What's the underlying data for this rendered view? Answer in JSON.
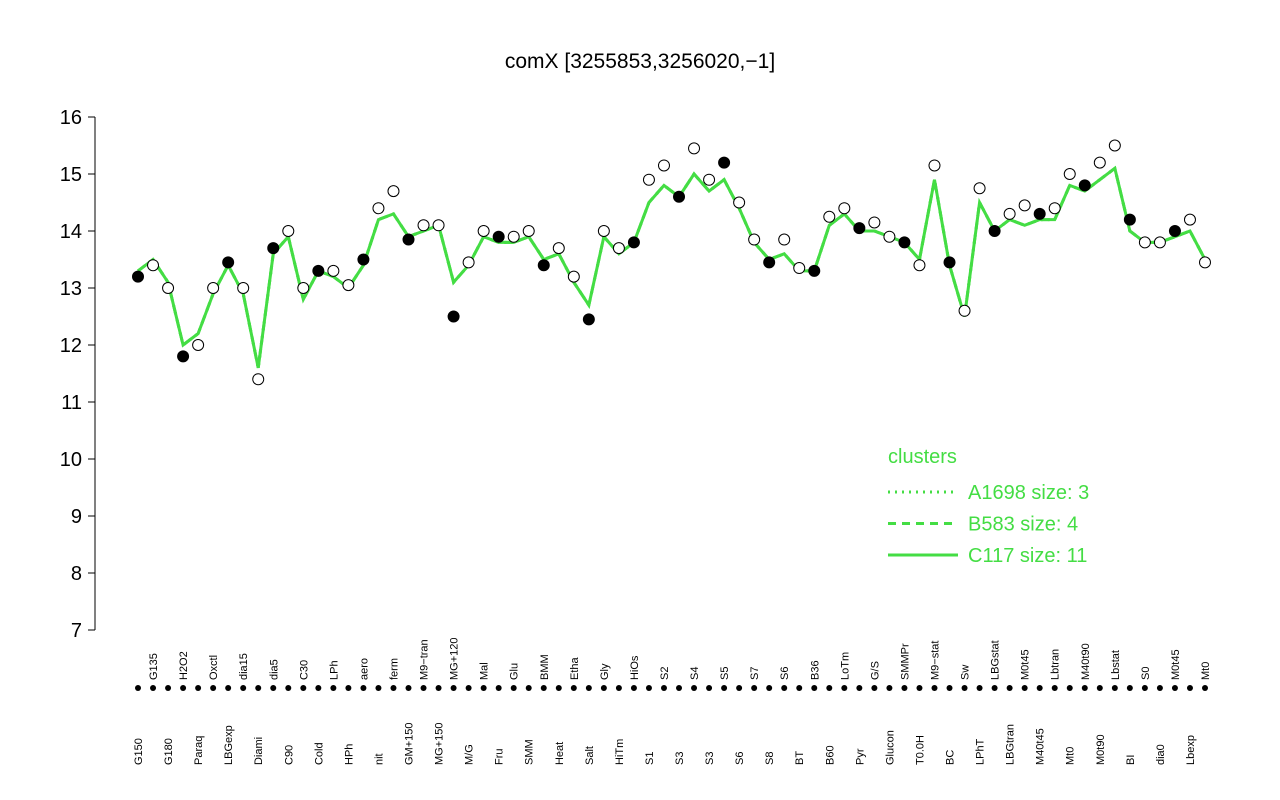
{
  "chart_data": {
    "type": "line",
    "title": "comX [3255853,3256020,−1]",
    "categories": [
      "G150",
      "G135",
      "G180",
      "H2O2",
      "Paraq",
      "Oxctl",
      "LBGexp",
      "dia15",
      "Diami",
      "dia5",
      "C90",
      "C30",
      "Cold",
      "LPh",
      "HPh",
      "aero",
      "nit",
      "ferm",
      "GM+150",
      "M9−tran",
      "MG+150",
      "MG+120",
      "M/G",
      "Mal",
      "Fru",
      "Glu",
      "SMM",
      "BMM",
      "Heat",
      "Etha",
      "Salt",
      "Gly",
      "HiTm",
      "HiOs",
      "S1",
      "S2",
      "S3",
      "S4",
      "S3",
      "S5",
      "S6",
      "S7",
      "S8",
      "S6",
      "BT",
      "B36",
      "B60",
      "LoTm",
      "Pyr",
      "G/S",
      "Glucon",
      "SMMPr",
      "T0.0H",
      "M9−stat",
      "BC",
      "Sw",
      "LPhT",
      "LBGstat",
      "LBGtran",
      "M0t45",
      "M40t45",
      "Lbtran",
      "Mt0",
      "M40t90",
      "M0t90",
      "Lbstat",
      "BI",
      "S0",
      "dia0",
      "M0t45",
      "Lbexp",
      "Mt0"
    ],
    "values": [
      13.2,
      13.4,
      13.0,
      11.8,
      12.0,
      13.0,
      13.45,
      13.0,
      11.4,
      13.7,
      14.0,
      13.0,
      13.3,
      13.3,
      13.05,
      13.5,
      14.4,
      14.7,
      13.85,
      14.1,
      14.1,
      12.5,
      13.45,
      14.0,
      13.9,
      13.9,
      14.0,
      13.4,
      13.7,
      13.2,
      12.45,
      14.0,
      13.7,
      13.8,
      14.9,
      15.15,
      14.6,
      15.45,
      14.9,
      15.2,
      14.5,
      13.85,
      13.45,
      13.85,
      13.35,
      13.3,
      14.25,
      14.4,
      14.05,
      14.15,
      13.9,
      13.8,
      13.4,
      15.15,
      13.45,
      12.6,
      14.75,
      14.0,
      14.3,
      14.45,
      14.3,
      14.4,
      15.0,
      14.8,
      15.2,
      15.5,
      14.2,
      13.8,
      13.8,
      14.0,
      14.2,
      13.45
    ],
    "point_color": "#000000",
    "legend_title": "clusters",
    "series": [
      {
        "name": "A1698 size: 3",
        "color": "#44dd44",
        "style": "dotted",
        "values": [
          13.3,
          13.5,
          13.1,
          12.0,
          12.2,
          12.9,
          13.4,
          12.9,
          11.6,
          13.6,
          13.9,
          12.8,
          13.3,
          13.2,
          13.0,
          13.4,
          14.2,
          14.3,
          13.9,
          14.0,
          14.1,
          13.1,
          13.4,
          13.9,
          13.8,
          13.8,
          13.9,
          13.5,
          13.6,
          13.1,
          12.7,
          13.9,
          13.6,
          13.8,
          14.5,
          14.8,
          14.6,
          15.0,
          14.7,
          14.9,
          14.4,
          13.8,
          13.5,
          13.6,
          13.3,
          13.3,
          14.1,
          14.3,
          14.0,
          14.0,
          13.9,
          13.8,
          13.5,
          14.9,
          13.4,
          12.5,
          14.5,
          14.0,
          14.2,
          14.1,
          14.2,
          14.2,
          14.8,
          14.7,
          14.9,
          15.1,
          14.0,
          13.8,
          13.8,
          13.9,
          14.0,
          13.5
        ]
      },
      {
        "name": "B583 size: 4",
        "color": "#44dd44",
        "style": "dashed",
        "values": [
          13.3,
          13.5,
          13.1,
          12.0,
          12.2,
          12.9,
          13.4,
          12.9,
          11.6,
          13.6,
          13.9,
          12.8,
          13.3,
          13.2,
          13.0,
          13.4,
          14.2,
          14.3,
          13.9,
          14.0,
          14.1,
          13.1,
          13.4,
          13.9,
          13.8,
          13.8,
          13.9,
          13.5,
          13.6,
          13.1,
          12.7,
          13.9,
          13.6,
          13.8,
          14.5,
          14.8,
          14.6,
          15.0,
          14.7,
          14.9,
          14.4,
          13.8,
          13.5,
          13.6,
          13.3,
          13.3,
          14.1,
          14.3,
          14.0,
          14.0,
          13.9,
          13.8,
          13.5,
          14.9,
          13.4,
          12.5,
          14.5,
          14.0,
          14.2,
          14.1,
          14.2,
          14.2,
          14.8,
          14.7,
          14.9,
          15.1,
          14.0,
          13.8,
          13.8,
          13.9,
          14.0,
          13.5
        ]
      },
      {
        "name": "C117 size: 11",
        "color": "#44dd44",
        "style": "solid",
        "values": [
          13.3,
          13.5,
          13.1,
          12.0,
          12.2,
          12.9,
          13.4,
          12.9,
          11.6,
          13.6,
          13.9,
          12.8,
          13.3,
          13.2,
          13.0,
          13.4,
          14.2,
          14.3,
          13.9,
          14.0,
          14.1,
          13.1,
          13.4,
          13.9,
          13.8,
          13.8,
          13.9,
          13.5,
          13.6,
          13.1,
          12.7,
          13.9,
          13.6,
          13.8,
          14.5,
          14.8,
          14.6,
          15.0,
          14.7,
          14.9,
          14.4,
          13.8,
          13.5,
          13.6,
          13.3,
          13.3,
          14.1,
          14.3,
          14.0,
          14.0,
          13.9,
          13.8,
          13.5,
          14.9,
          13.4,
          12.5,
          14.5,
          14.0,
          14.2,
          14.1,
          14.2,
          14.2,
          14.8,
          14.7,
          14.9,
          15.1,
          14.0,
          13.8,
          13.8,
          13.9,
          14.0,
          13.5
        ]
      }
    ],
    "ylim": [
      7,
      16
    ],
    "yticks": [
      7,
      8,
      9,
      10,
      11,
      12,
      13,
      14,
      15,
      16
    ]
  }
}
